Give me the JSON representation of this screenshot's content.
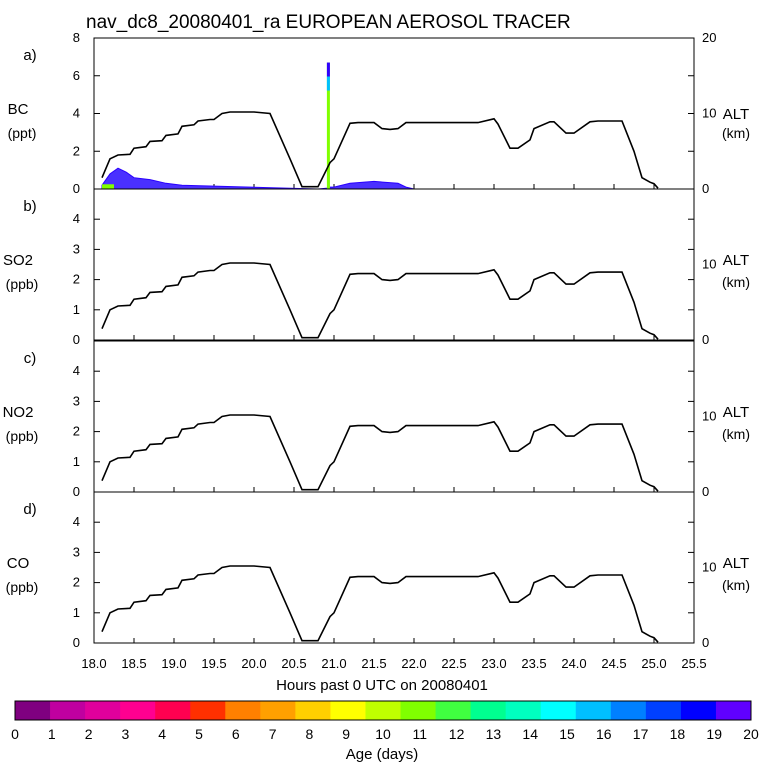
{
  "title": "nav_dc8_20080401_ra EUROPEAN AEROSOL TRACER",
  "chart_data": {
    "type": "area",
    "xlabel": "Hours past 0 UTC on 20080401",
    "xlim": [
      18.0,
      25.5
    ],
    "xticks": [
      "18.0",
      "18.5",
      "19.0",
      "19.5",
      "20.0",
      "20.5",
      "21.0",
      "21.5",
      "22.0",
      "22.5",
      "23.0",
      "23.5",
      "24.0",
      "24.5",
      "25.0",
      "25.5"
    ],
    "right_axis": {
      "label": "ALT",
      "unit": "(km)",
      "ylim": [
        0,
        20
      ],
      "ticks": [
        "0",
        "10",
        "20"
      ]
    },
    "panels": [
      {
        "letter": "a)",
        "species": "BC",
        "unit": "(ppt)",
        "ylim": [
          0,
          8
        ],
        "yticks": [
          "0",
          "2",
          "4",
          "6",
          "8"
        ],
        "rticks": [
          "0",
          "10",
          "20"
        ]
      },
      {
        "letter": "b)",
        "species": "SO2",
        "unit": "(ppb)",
        "ylim": [
          0,
          5
        ],
        "yticks": [
          "0",
          "1",
          "2",
          "3",
          "4"
        ],
        "rticks": [
          "0",
          "10"
        ]
      },
      {
        "letter": "c)",
        "species": "NO2",
        "unit": "(ppb)",
        "ylim": [
          0,
          5
        ],
        "yticks": [
          "0",
          "1",
          "2",
          "3",
          "4"
        ],
        "rticks": [
          "0",
          "10"
        ]
      },
      {
        "letter": "d)",
        "species": "CO",
        "unit": "(ppb)",
        "ylim": [
          0,
          5
        ],
        "yticks": [
          "0",
          "1",
          "2",
          "3",
          "4"
        ],
        "rticks": [
          "0",
          "10"
        ]
      }
    ],
    "altitude_km": {
      "x": [
        18.1,
        18.2,
        18.3,
        18.45,
        18.5,
        18.65,
        18.7,
        18.85,
        18.9,
        19.05,
        19.1,
        19.25,
        19.3,
        19.45,
        19.5,
        19.6,
        19.7,
        20.0,
        20.2,
        20.45,
        20.6,
        20.8,
        20.95,
        21.0,
        21.2,
        21.3,
        21.5,
        21.6,
        21.7,
        21.8,
        21.9,
        22.0,
        22.8,
        23.0,
        23.05,
        23.2,
        23.3,
        23.45,
        23.5,
        23.7,
        23.75,
        23.9,
        24.0,
        24.2,
        24.3,
        24.6,
        24.75,
        24.85,
        24.95,
        25.0,
        25.05
      ],
      "y": [
        1.5,
        4.0,
        4.5,
        4.6,
        5.4,
        5.6,
        6.3,
        6.4,
        7.1,
        7.3,
        8.3,
        8.5,
        9.0,
        9.2,
        9.2,
        10.0,
        10.2,
        10.2,
        10.0,
        4.0,
        0.3,
        0.3,
        3.5,
        4.0,
        8.7,
        8.8,
        8.8,
        8.0,
        7.9,
        8.0,
        8.8,
        8.8,
        8.8,
        9.3,
        8.6,
        5.4,
        5.4,
        6.5,
        8.0,
        8.9,
        8.9,
        7.4,
        7.4,
        8.9,
        9.0,
        9.0,
        5.0,
        1.5,
        0.9,
        0.7,
        0.1
      ]
    },
    "bc_tracer_ppt": {
      "x": [
        18.1,
        18.2,
        18.3,
        18.4,
        18.5,
        18.7,
        18.9,
        19.1,
        20.8,
        20.92,
        20.93,
        20.94,
        21.0,
        21.2,
        21.5,
        21.8,
        21.9,
        22.0
      ],
      "y": [
        0.2,
        0.8,
        1.1,
        0.9,
        0.6,
        0.5,
        0.3,
        0.2,
        0.0,
        0.05,
        6.7,
        0.1,
        0.1,
        0.3,
        0.4,
        0.3,
        0.1,
        0.0
      ]
    },
    "colorbar": {
      "label": "Age (days)",
      "ticks": [
        "0",
        "1",
        "2",
        "3",
        "4",
        "5",
        "6",
        "7",
        "8",
        "9",
        "10",
        "11",
        "12",
        "13",
        "14",
        "15",
        "16",
        "17",
        "18",
        "19",
        "20"
      ],
      "colors": [
        "#7f0080",
        "#c000a0",
        "#e0009c",
        "#ff0090",
        "#ff0050",
        "#ff3000",
        "#ff8000",
        "#ffa000",
        "#ffd000",
        "#ffff00",
        "#c0ff00",
        "#80ff00",
        "#40ff40",
        "#00ff90",
        "#00ffc0",
        "#00ffff",
        "#00c0ff",
        "#0080ff",
        "#0040ff",
        "#0000ff",
        "#6000ff"
      ]
    }
  }
}
